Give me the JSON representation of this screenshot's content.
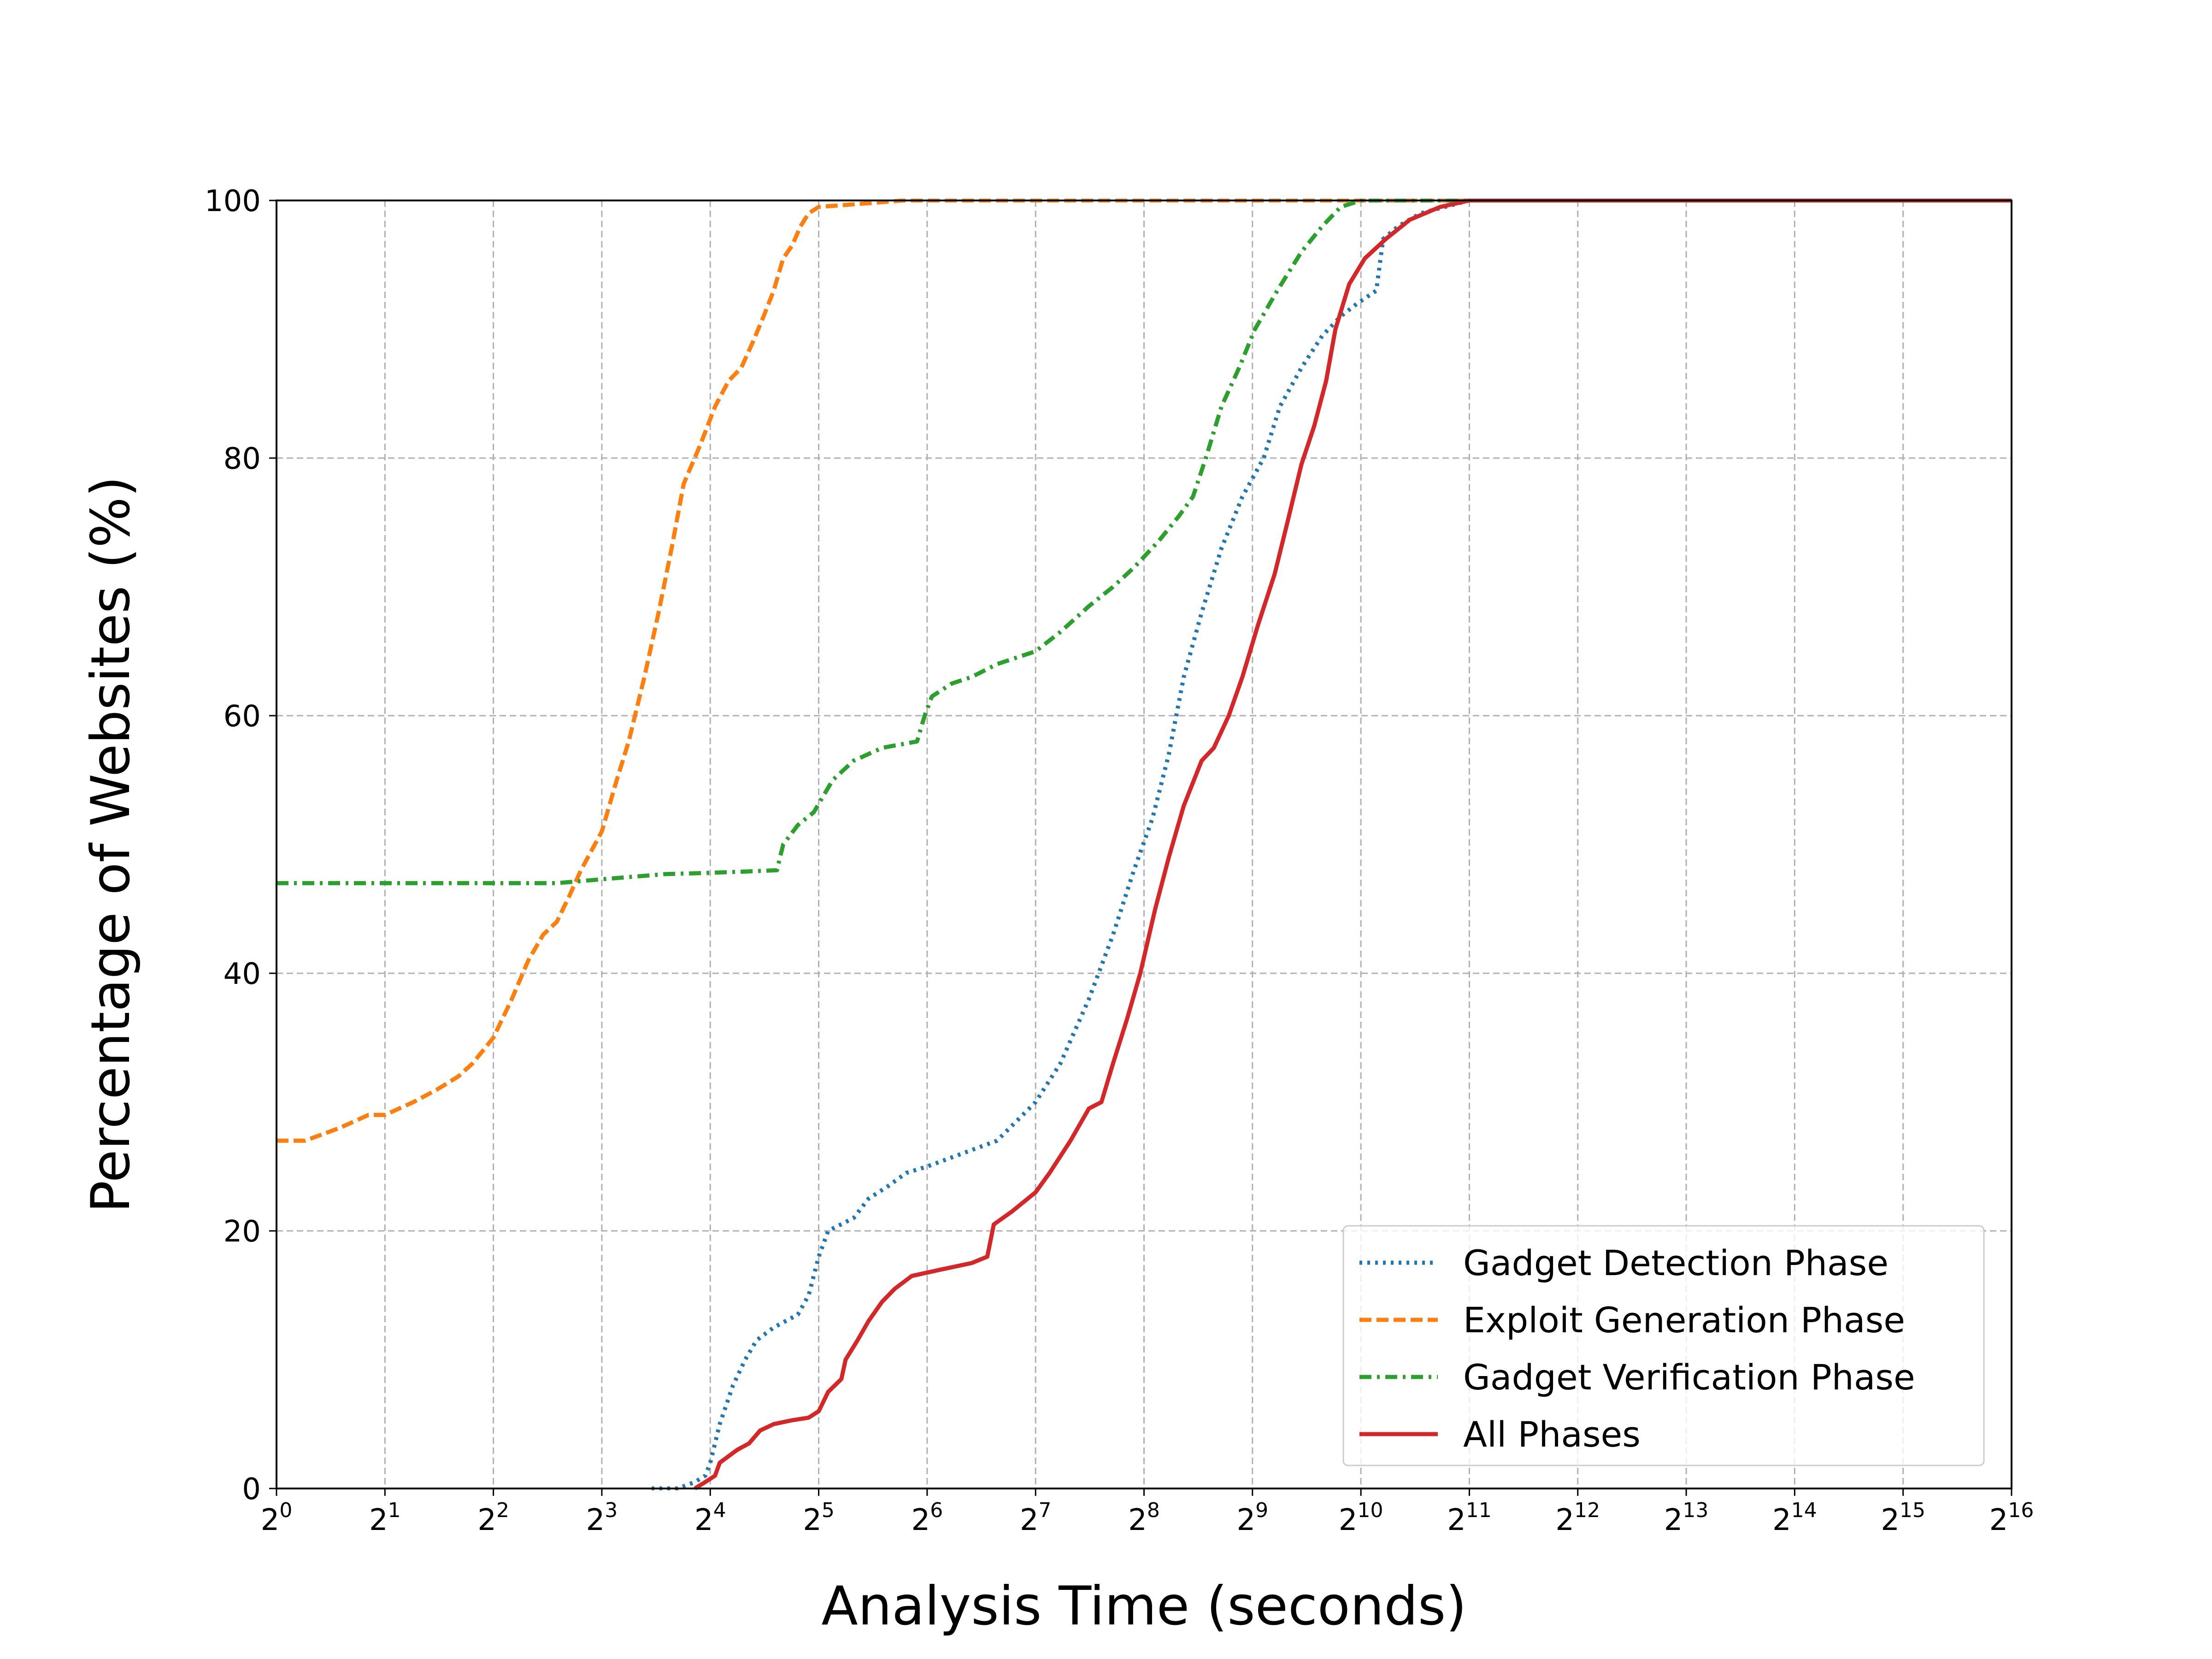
{
  "chart_data": {
    "type": "line",
    "title": "",
    "xlabel": "Analysis Time (seconds)",
    "ylabel": "Percentage of Websites (%)",
    "xscale": "log2",
    "xlim": [
      1,
      65536
    ],
    "ylim": [
      0,
      100
    ],
    "x_ticks": [
      {
        "base": "2",
        "exp": "0"
      },
      {
        "base": "2",
        "exp": "1"
      },
      {
        "base": "2",
        "exp": "2"
      },
      {
        "base": "2",
        "exp": "3"
      },
      {
        "base": "2",
        "exp": "4"
      },
      {
        "base": "2",
        "exp": "5"
      },
      {
        "base": "2",
        "exp": "6"
      },
      {
        "base": "2",
        "exp": "7"
      },
      {
        "base": "2",
        "exp": "8"
      },
      {
        "base": "2",
        "exp": "9"
      },
      {
        "base": "2",
        "exp": "10"
      },
      {
        "base": "2",
        "exp": "11"
      },
      {
        "base": "2",
        "exp": "12"
      },
      {
        "base": "2",
        "exp": "13"
      },
      {
        "base": "2",
        "exp": "14"
      },
      {
        "base": "2",
        "exp": "15"
      },
      {
        "base": "2",
        "exp": "16"
      }
    ],
    "y_ticks": [
      "0",
      "20",
      "40",
      "60",
      "80",
      "100"
    ],
    "grid": true,
    "legend_position": "lower-right",
    "series": [
      {
        "name": "Gadget Detection Phase",
        "color": "#1f77b4",
        "style": "dotted",
        "points": [
          [
            11,
            0
          ],
          [
            13,
            0
          ],
          [
            14.5,
            0.5
          ],
          [
            15.5,
            1
          ],
          [
            16,
            2
          ],
          [
            17,
            5
          ],
          [
            18.5,
            8
          ],
          [
            20,
            10
          ],
          [
            21.5,
            11.5
          ],
          [
            24,
            12.5
          ],
          [
            28,
            13.5
          ],
          [
            30,
            15
          ],
          [
            32,
            18
          ],
          [
            34,
            20
          ],
          [
            40,
            21
          ],
          [
            44,
            22.5
          ],
          [
            50,
            23.5
          ],
          [
            56,
            24.5
          ],
          [
            64,
            25
          ],
          [
            80,
            26
          ],
          [
            100,
            27
          ],
          [
            128,
            30
          ],
          [
            150,
            33
          ],
          [
            180,
            38
          ],
          [
            210,
            43
          ],
          [
            240,
            48
          ],
          [
            270,
            52
          ],
          [
            300,
            57
          ],
          [
            330,
            63
          ],
          [
            370,
            68
          ],
          [
            420,
            73
          ],
          [
            480,
            77
          ],
          [
            550,
            80
          ],
          [
            610,
            84
          ],
          [
            700,
            87
          ],
          [
            800,
            89.5
          ],
          [
            900,
            91
          ],
          [
            1000,
            92
          ],
          [
            1130,
            93
          ],
          [
            1180,
            97
          ],
          [
            1300,
            98
          ],
          [
            1500,
            99
          ],
          [
            2048,
            100
          ],
          [
            4096,
            100
          ],
          [
            65536,
            100
          ]
        ]
      },
      {
        "name": "Exploit Generation Phase",
        "color": "#ff7f0e",
        "style": "dashed",
        "points": [
          [
            1,
            27
          ],
          [
            1.2,
            27
          ],
          [
            1.5,
            28
          ],
          [
            1.8,
            29
          ],
          [
            2,
            29
          ],
          [
            2.4,
            30
          ],
          [
            2.8,
            31
          ],
          [
            3.2,
            32
          ],
          [
            3.5,
            33
          ],
          [
            4,
            35
          ],
          [
            4.5,
            38
          ],
          [
            5,
            41
          ],
          [
            5.5,
            43
          ],
          [
            6,
            44
          ],
          [
            6.5,
            46
          ],
          [
            7,
            48
          ],
          [
            8,
            51
          ],
          [
            8.8,
            55
          ],
          [
            9.5,
            58
          ],
          [
            10.5,
            63
          ],
          [
            11.5,
            68
          ],
          [
            12.5,
            73
          ],
          [
            13.5,
            78
          ],
          [
            15,
            81
          ],
          [
            16.5,
            84
          ],
          [
            18,
            86
          ],
          [
            19.5,
            87
          ],
          [
            21,
            89
          ],
          [
            22.5,
            91
          ],
          [
            24,
            93
          ],
          [
            25.5,
            95.5
          ],
          [
            27,
            96.5
          ],
          [
            28.5,
            98
          ],
          [
            30,
            99
          ],
          [
            32,
            99.5
          ],
          [
            40,
            99.7
          ],
          [
            55,
            100
          ],
          [
            65536,
            100
          ]
        ]
      },
      {
        "name": "Gadget Verification Phase",
        "color": "#2ca02c",
        "style": "dashdot",
        "points": [
          [
            1,
            47
          ],
          [
            2,
            47
          ],
          [
            4,
            47
          ],
          [
            6,
            47
          ],
          [
            8,
            47.3
          ],
          [
            12,
            47.7
          ],
          [
            16,
            47.8
          ],
          [
            20,
            47.9
          ],
          [
            24.5,
            48
          ],
          [
            25.5,
            50
          ],
          [
            28,
            51.5
          ],
          [
            31,
            52.5
          ],
          [
            35,
            55
          ],
          [
            40,
            56.5
          ],
          [
            48,
            57.5
          ],
          [
            60,
            58
          ],
          [
            63,
            60
          ],
          [
            66,
            61.5
          ],
          [
            75,
            62.5
          ],
          [
            85,
            63
          ],
          [
            100,
            64
          ],
          [
            128,
            65
          ],
          [
            150,
            66.5
          ],
          [
            180,
            68.5
          ],
          [
            210,
            70
          ],
          [
            240,
            71.5
          ],
          [
            280,
            73.5
          ],
          [
            320,
            75.5
          ],
          [
            350,
            77
          ],
          [
            380,
            80
          ],
          [
            420,
            84
          ],
          [
            470,
            87
          ],
          [
            520,
            90
          ],
          [
            600,
            93
          ],
          [
            700,
            96
          ],
          [
            800,
            98
          ],
          [
            900,
            99.5
          ],
          [
            1024,
            100
          ],
          [
            65536,
            100
          ]
        ]
      },
      {
        "name": "All Phases",
        "color": "#d62728",
        "style": "solid",
        "points": [
          [
            14.5,
            0
          ],
          [
            15.5,
            0.5
          ],
          [
            16.5,
            1
          ],
          [
            17,
            2
          ],
          [
            19,
            3
          ],
          [
            20.5,
            3.5
          ],
          [
            22,
            4.5
          ],
          [
            24,
            5
          ],
          [
            27,
            5.3
          ],
          [
            30,
            5.5
          ],
          [
            32,
            6
          ],
          [
            34,
            7.5
          ],
          [
            37,
            8.5
          ],
          [
            38,
            10
          ],
          [
            41,
            11.5
          ],
          [
            44,
            13
          ],
          [
            48,
            14.5
          ],
          [
            52,
            15.5
          ],
          [
            58,
            16.5
          ],
          [
            70,
            17
          ],
          [
            85,
            17.5
          ],
          [
            94,
            18
          ],
          [
            98,
            20.5
          ],
          [
            110,
            21.5
          ],
          [
            128,
            23
          ],
          [
            140,
            24.5
          ],
          [
            160,
            27
          ],
          [
            180,
            29.5
          ],
          [
            195,
            30
          ],
          [
            210,
            33
          ],
          [
            230,
            36.5
          ],
          [
            250,
            40
          ],
          [
            275,
            45
          ],
          [
            300,
            49
          ],
          [
            330,
            53
          ],
          [
            370,
            56.5
          ],
          [
            400,
            57.5
          ],
          [
            440,
            60
          ],
          [
            480,
            63
          ],
          [
            530,
            67
          ],
          [
            590,
            71
          ],
          [
            640,
            75
          ],
          [
            700,
            79.5
          ],
          [
            760,
            82.5
          ],
          [
            820,
            86
          ],
          [
            870,
            90
          ],
          [
            950,
            93.5
          ],
          [
            1050,
            95.5
          ],
          [
            1200,
            97
          ],
          [
            1400,
            98.5
          ],
          [
            1700,
            99.5
          ],
          [
            2048,
            100
          ],
          [
            65536,
            100
          ]
        ]
      }
    ]
  }
}
